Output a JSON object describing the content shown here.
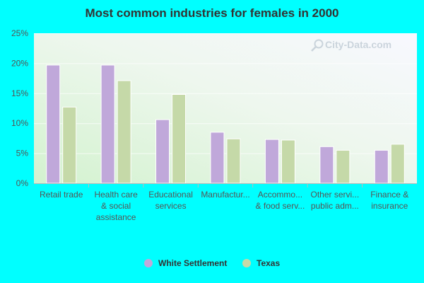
{
  "chart_data": {
    "type": "bar",
    "title": "Most common industries for females in 2000",
    "xlabel": "",
    "ylabel": "",
    "ylim": [
      0,
      25
    ],
    "yticks": [
      "0%",
      "5%",
      "10%",
      "15%",
      "20%",
      "25%"
    ],
    "categories": [
      [
        "Retail trade"
      ],
      [
        "Health care",
        "& social",
        "assistance"
      ],
      [
        "Educational",
        "services"
      ],
      [
        "Manufactur..."
      ],
      [
        "Accommo...",
        "& food serv..."
      ],
      [
        "Other servi...",
        "public adm..."
      ],
      [
        "Finance &",
        "insurance"
      ]
    ],
    "series": [
      {
        "name": "White Settlement",
        "color": "#c0a8da",
        "values": [
          19.7,
          19.7,
          10.6,
          8.5,
          7.3,
          6.1,
          5.5
        ]
      },
      {
        "name": "Texas",
        "color": "#c5d9a8",
        "values": [
          12.7,
          17.1,
          14.8,
          7.4,
          7.2,
          5.5,
          6.5
        ]
      }
    ],
    "grid": true,
    "legend_position": "bottom-center",
    "watermark": "City-Data.com"
  }
}
